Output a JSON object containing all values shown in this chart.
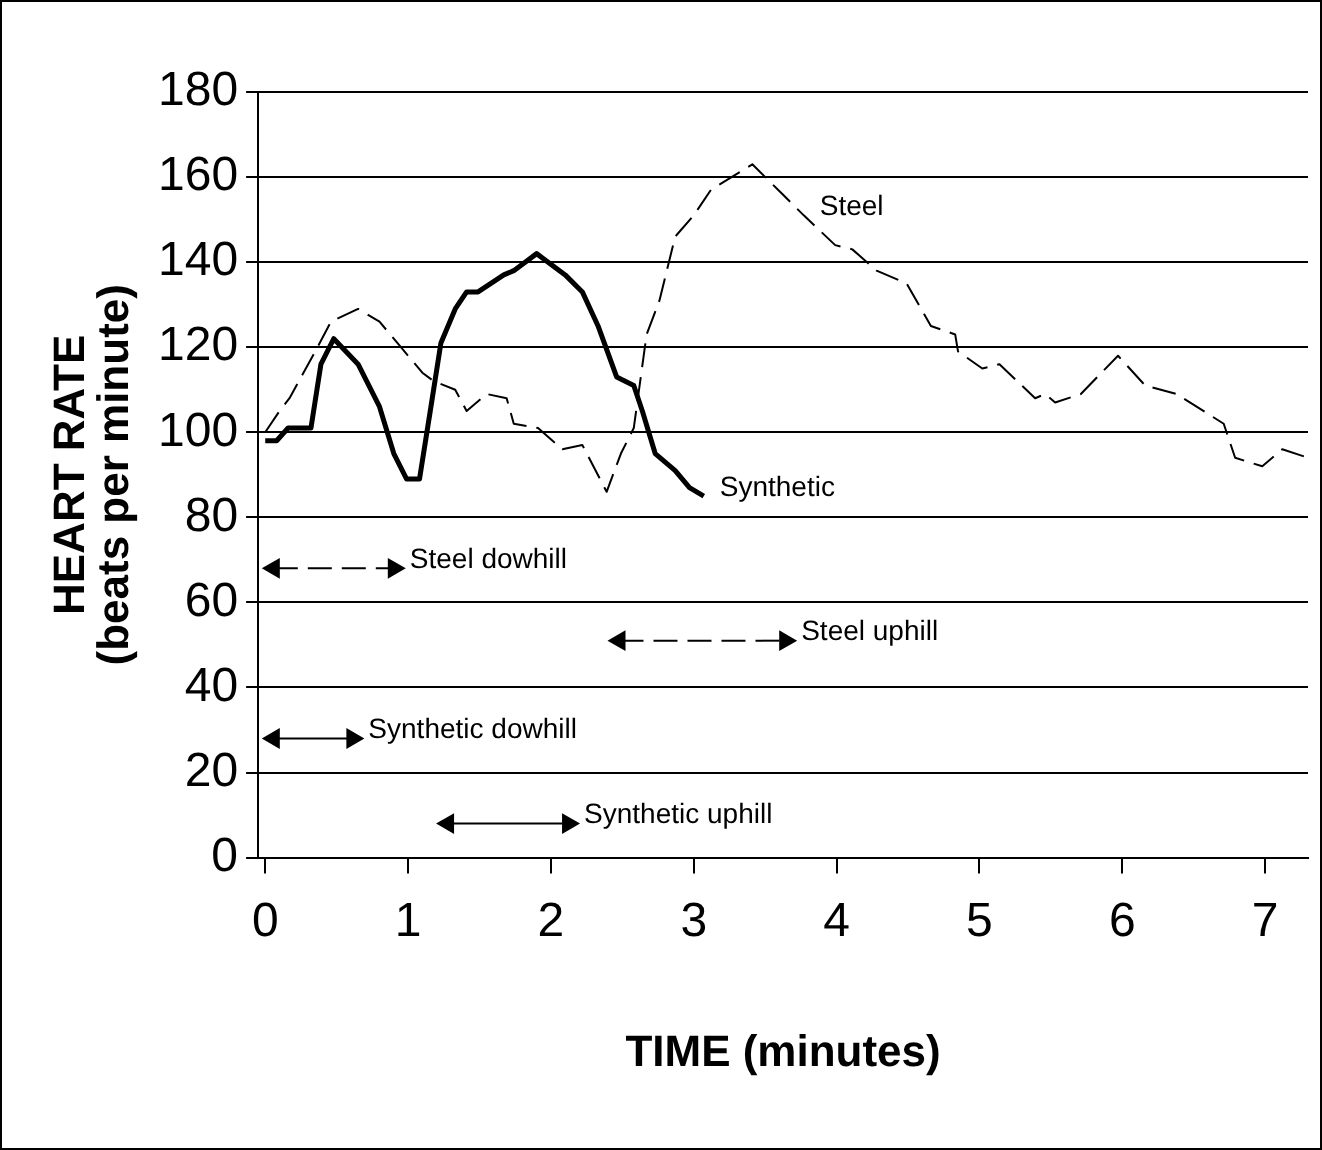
{
  "chart_data": {
    "type": "line",
    "xlabel": "TIME (minutes)",
    "ylabel": "HEART RATE\n(beats per minute)",
    "xlim": [
      -0.05,
      7.3
    ],
    "xticks": [
      0,
      1,
      2,
      3,
      4,
      5,
      6,
      7
    ],
    "ylim": [
      0,
      180
    ],
    "yticks": [
      0,
      20,
      40,
      60,
      80,
      100,
      120,
      140,
      160,
      180
    ],
    "grid": "y",
    "legend": false,
    "marker": "none",
    "series": [
      {
        "color": "#000000",
        "line_style": "solid",
        "x": [
          0,
          0.08,
          0.16,
          0.32,
          0.39,
          0.48,
          0.65,
          0.8,
          0.9,
          0.99,
          1.08,
          1.16,
          1.23,
          1.33,
          1.41,
          1.49,
          1.67,
          1.74,
          1.9,
          2.1,
          2.22,
          2.33,
          2.46,
          2.58,
          2.64,
          2.73,
          2.87,
          2.97,
          3.07
        ],
        "values": [
          98,
          98,
          101,
          101,
          116,
          122,
          116,
          106,
          95,
          89,
          89,
          106,
          121,
          129,
          133,
          133,
          137,
          138,
          142,
          137,
          133,
          125,
          113,
          111,
          105,
          95,
          91,
          87,
          85
        ]
      },
      {
        "color": "#000000",
        "line_style": "dashed",
        "x": [
          0,
          0.1,
          0.17,
          0.35,
          0.46,
          0.65,
          0.8,
          0.95,
          1.1,
          1.18,
          1.33,
          1.41,
          1.55,
          1.69,
          1.74,
          1.91,
          2.08,
          2.22,
          2.39,
          2.49,
          2.58,
          2.67,
          2.76,
          2.87,
          3.0,
          3.12,
          3.41,
          3.62,
          3.77,
          3.99,
          4.11,
          4.28,
          4.49,
          4.66,
          4.83,
          4.85,
          5.02,
          5.14,
          5.39,
          5.46,
          5.53,
          5.71,
          5.97,
          6.16,
          6.38,
          6.71,
          6.79,
          6.98,
          7.12,
          7.3
        ],
        "values": [
          100,
          105,
          108,
          119,
          126,
          129,
          126,
          120,
          114,
          112,
          110,
          105,
          109,
          108,
          102,
          101,
          96,
          97,
          86,
          95,
          101,
          123,
          131,
          146,
          151,
          157,
          163,
          156,
          151,
          144,
          143,
          138,
          135,
          125,
          123,
          119,
          115,
          116,
          108,
          109,
          107,
          109,
          118,
          111,
          109,
          102,
          94,
          92,
          96,
          94
        ]
      },
      {
        "color": "#000000",
        "line_style": "dashed",
        "marker": "triangle",
        "x": [
          0.06,
          0.9
        ],
        "values": [
          68,
          68
        ]
      },
      {
        "color": "#000000",
        "line_style": "dashed",
        "marker": "triangle",
        "x": [
          2.48,
          3.64
        ],
        "values": [
          51,
          51
        ]
      },
      {
        "color": "#000000",
        "line_style": "solid",
        "marker": "triangle",
        "x": [
          0.06,
          0.61
        ],
        "values": [
          28,
          28
        ]
      },
      {
        "color": "#000000",
        "line_style": "solid",
        "marker": "triangle",
        "x": [
          1.28,
          2.12
        ],
        "values": [
          8,
          8
        ]
      }
    ],
    "annotations": [
      {
        "text": "Steel",
        "x": 3.77,
        "y": 151
      },
      {
        "text": "Synthetic",
        "x": 3.07,
        "y": 85
      },
      {
        "text": "Steel dowhill",
        "x": 0.9,
        "y": 68
      },
      {
        "text": "Steel uphill",
        "x": 3.64,
        "y": 51
      },
      {
        "text": "Synthetic dowhill",
        "x": 0.61,
        "y": 28
      },
      {
        "text": "Synthetic uphill",
        "x": 2.12,
        "y": 8
      }
    ]
  }
}
